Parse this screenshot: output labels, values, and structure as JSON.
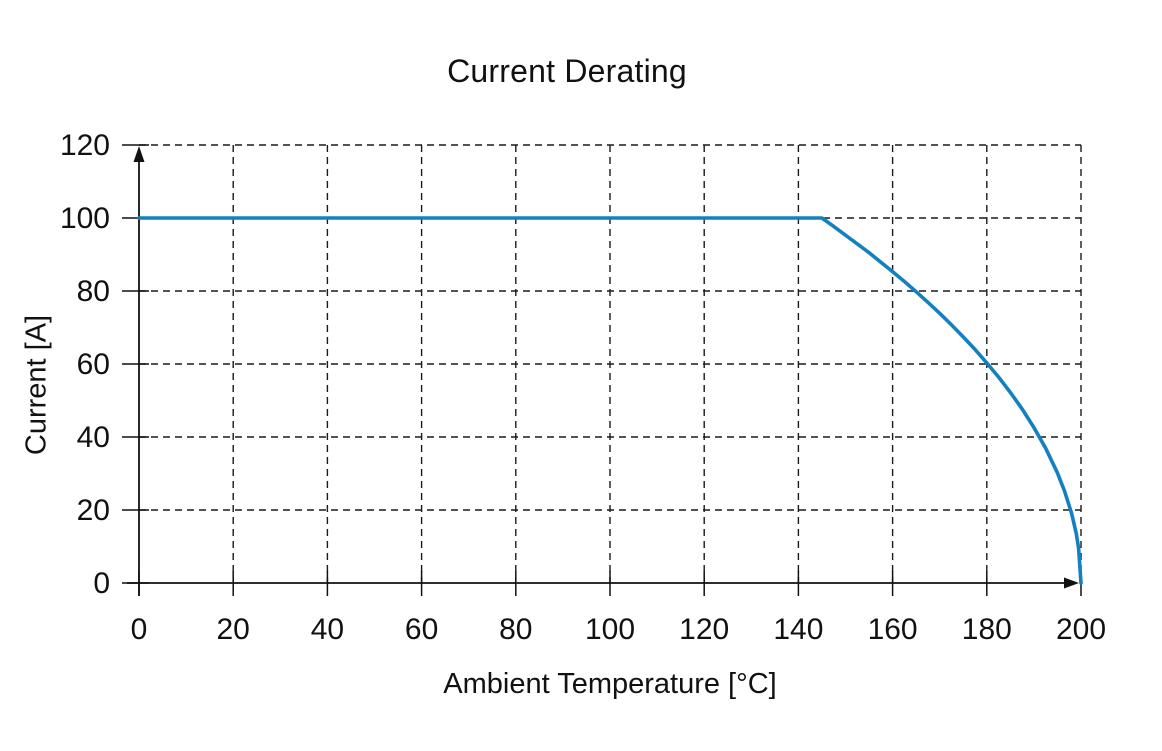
{
  "page": {
    "background": "#ffffff"
  },
  "chart_data": {
    "type": "line",
    "title": "Current Derating",
    "xlabel": "Ambient Temperature [°C]",
    "ylabel": "Current [A]",
    "xlim": [
      0,
      200
    ],
    "ylim": [
      0,
      120
    ],
    "xticks": [
      0,
      20,
      40,
      60,
      80,
      100,
      120,
      140,
      160,
      180,
      200
    ],
    "yticks": [
      0,
      20,
      40,
      60,
      80,
      100,
      120
    ],
    "grid": {
      "style": "dashed",
      "color": "#1a1a1a"
    },
    "axes": {
      "arrows": true,
      "color": "#111111"
    },
    "legend_position": "none",
    "series": [
      {
        "name": "Current",
        "color": "#1480c0",
        "line_width": 3.6,
        "points": [
          [
            0,
            100
          ],
          [
            145,
            100
          ],
          [
            147.5,
            97.7
          ],
          [
            150,
            95.3
          ],
          [
            152.5,
            92.9
          ],
          [
            155,
            90.5
          ],
          [
            157.5,
            87.9
          ],
          [
            160,
            85.3
          ],
          [
            162.5,
            82.6
          ],
          [
            165,
            79.8
          ],
          [
            167.5,
            76.9
          ],
          [
            170,
            73.9
          ],
          [
            172.5,
            70.7
          ],
          [
            175,
            67.4
          ],
          [
            177.5,
            64.0
          ],
          [
            180,
            60.3
          ],
          [
            182.5,
            56.4
          ],
          [
            185,
            52.2
          ],
          [
            187.5,
            47.7
          ],
          [
            190,
            42.6
          ],
          [
            192.5,
            36.9
          ],
          [
            195,
            30.2
          ],
          [
            196.5,
            25.2
          ],
          [
            198,
            19.1
          ],
          [
            199,
            13.5
          ],
          [
            199.5,
            9.5
          ],
          [
            200,
            0
          ]
        ]
      }
    ]
  }
}
